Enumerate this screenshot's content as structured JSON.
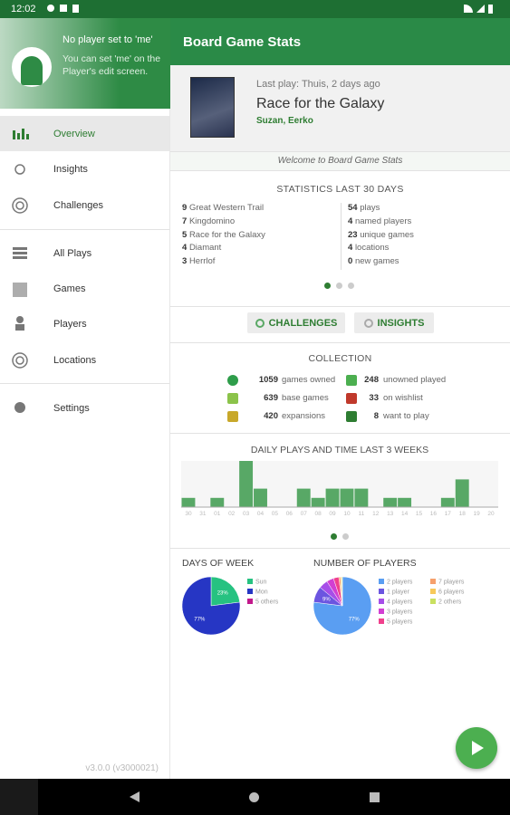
{
  "status_bar": {
    "time": "12:02"
  },
  "drawer": {
    "header_title": "No player set to 'me'",
    "header_text": "You can set 'me' on the Player's edit screen.",
    "menu": [
      "Overview",
      "Insights",
      "Challenges",
      "All Plays",
      "Games",
      "Players",
      "Locations",
      "Settings"
    ],
    "version": "v3.0.0 (v3000021)"
  },
  "app_bar": {
    "title": "Board Game Stats"
  },
  "last_play": {
    "label": "Last play: Thuis, 2 days ago",
    "game": "Race for the Galaxy",
    "players": "Suzan, Eerko"
  },
  "welcome": "Welcome to Board Game Stats",
  "stats": {
    "title": "STATISTICS LAST 30 DAYS",
    "games": [
      {
        "count": 9,
        "name": "Great Western Trail"
      },
      {
        "count": 7,
        "name": "Kingdomino"
      },
      {
        "count": 5,
        "name": "Race for the Galaxy"
      },
      {
        "count": 4,
        "name": "Diamant"
      },
      {
        "count": 3,
        "name": "Herrlof"
      }
    ],
    "numbers": [
      {
        "count": 54,
        "label": "plays"
      },
      {
        "count": 4,
        "label": "named players"
      },
      {
        "count": 23,
        "label": "unique games"
      },
      {
        "count": 4,
        "label": "locations"
      },
      {
        "count": 0,
        "label": "new games"
      }
    ]
  },
  "buttons": [
    "CHALLENGES",
    "INSIGHTS"
  ],
  "collection": {
    "title": "COLLECTION",
    "items": [
      {
        "count": 1059,
        "label": "games owned"
      },
      {
        "count": 248,
        "label": "unowned played"
      },
      {
        "count": 639,
        "label": "base games"
      },
      {
        "count": 33,
        "label": "on wishlist"
      },
      {
        "count": 420,
        "label": "expansions"
      },
      {
        "count": 8,
        "label": "want to play"
      }
    ]
  },
  "chart_data": [
    {
      "type": "bar",
      "title": "DAILY PLAYS AND TIME LAST 3 WEEKS",
      "categories": [
        "30",
        "31",
        "01",
        "02",
        "03",
        "04",
        "05",
        "06",
        "07",
        "08",
        "09",
        "10",
        "11",
        "12",
        "13",
        "14",
        "15",
        "16",
        "17",
        "18",
        "19",
        "20"
      ],
      "values": [
        1,
        0,
        1,
        0,
        5,
        2,
        0,
        0,
        2,
        1,
        2,
        2,
        2,
        0,
        1,
        1,
        0,
        0,
        1,
        3,
        0,
        0
      ],
      "color": "#3c9a4c"
    },
    {
      "type": "pie",
      "title": "DAYS OF WEEK",
      "categories": [
        "Sun",
        "Mon",
        "5 others"
      ],
      "values": [
        23,
        77,
        0
      ],
      "value_labels": [
        "23%",
        "77%",
        null
      ],
      "colors": [
        "#26c281",
        "#2636c4",
        "#c2188b"
      ]
    },
    {
      "type": "pie",
      "title": "NUMBER OF PLAYERS",
      "categories": [
        "2 players",
        "1 player",
        "4 players",
        "3 players",
        "5 players",
        "7 players",
        "6 players",
        "2 others"
      ],
      "values": [
        77,
        9,
        5,
        4,
        3,
        1,
        0.5,
        0.5
      ],
      "value_labels": [
        "77%",
        "9%",
        null,
        null,
        null,
        null,
        null,
        null
      ],
      "colors": [
        "#5a9ef2",
        "#6b55e0",
        "#a64ee8",
        "#d23fd2",
        "#f0408c",
        "#f6a06c",
        "#f7c95a",
        "#c9e060"
      ]
    }
  ]
}
